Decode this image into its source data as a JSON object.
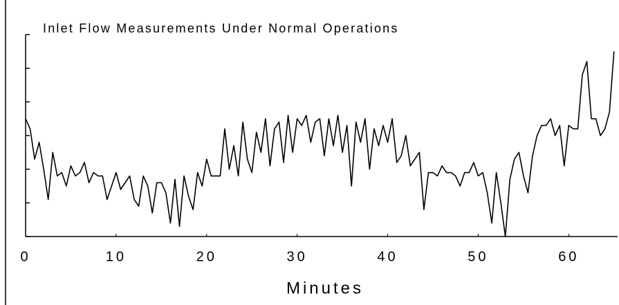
{
  "chart_data": {
    "type": "line",
    "title": "Inlet Flow Measurements Under Normal Operations",
    "xlabel": "Minutes",
    "x": [
      0,
      0.5,
      1,
      1.5,
      2,
      2.5,
      3,
      3.5,
      4,
      4.5,
      5,
      5.5,
      6,
      6.5,
      7,
      7.5,
      8,
      8.5,
      9,
      9.5,
      10,
      10.5,
      11,
      11.5,
      12,
      12.5,
      13,
      13.5,
      14,
      14.5,
      15,
      15.5,
      16,
      16.5,
      17,
      17.5,
      18,
      18.5,
      19,
      19.5,
      20,
      20.5,
      21,
      21.5,
      22,
      22.5,
      23,
      23.5,
      24,
      24.5,
      25,
      25.5,
      26,
      26.5,
      27,
      27.5,
      28,
      28.5,
      29,
      29.5,
      30,
      30.5,
      31,
      31.5,
      32,
      32.5,
      33,
      33.5,
      34,
      34.5,
      35,
      35.5,
      36,
      36.5,
      37,
      37.5,
      38,
      38.5,
      39,
      39.5,
      40,
      40.5,
      41,
      41.5,
      42,
      42.5,
      43,
      43.5,
      44,
      44.5,
      45,
      45.5,
      46,
      46.5,
      47,
      47.5,
      48,
      48.5,
      49,
      49.5,
      50,
      50.5,
      51,
      51.5,
      52,
      52.5,
      53,
      53.5,
      54,
      54.5,
      55,
      55.5,
      56,
      56.5,
      57,
      57.5,
      58,
      58.5,
      59,
      59.5,
      60,
      60.5,
      61,
      61.5,
      62,
      62.5,
      63,
      63.5,
      64,
      64.5,
      65
    ],
    "series": [
      {
        "color": "#000000",
        "values": [
          3.5,
          3.2,
          2.3,
          2.8,
          2.0,
          1.1,
          2.5,
          1.8,
          1.9,
          1.5,
          2.1,
          1.8,
          1.9,
          2.2,
          1.6,
          1.9,
          1.8,
          1.8,
          1.1,
          1.5,
          1.9,
          1.4,
          1.6,
          1.8,
          1.1,
          0.9,
          1.8,
          1.5,
          0.7,
          1.6,
          1.6,
          1.3,
          0.4,
          1.7,
          0.3,
          1.8,
          1.2,
          0.8,
          1.9,
          1.5,
          2.3,
          1.8,
          1.8,
          1.8,
          3.2,
          2.0,
          2.7,
          1.8,
          3.4,
          2.3,
          1.9,
          3.1,
          2.5,
          3.5,
          2.1,
          3.2,
          3.4,
          2.2,
          3.6,
          2.5,
          3.5,
          3.3,
          3.6,
          2.8,
          3.4,
          3.5,
          2.4,
          3.5,
          2.7,
          3.6,
          2.5,
          3.3,
          1.5,
          3.4,
          2.8,
          3.5,
          2.0,
          3.2,
          2.7,
          3.3,
          2.8,
          3.5,
          2.2,
          2.4,
          3.0,
          2.1,
          2.3,
          2.5,
          0.8,
          1.9,
          1.9,
          1.8,
          2.1,
          1.9,
          1.9,
          1.8,
          1.5,
          1.9,
          1.9,
          2.2,
          1.8,
          1.9,
          1.3,
          0.4,
          1.9,
          1.0,
          0.0,
          1.7,
          2.3,
          2.5,
          1.8,
          1.3,
          2.4,
          3.0,
          3.3,
          3.3,
          3.5,
          3.0,
          3.3,
          2.1,
          3.3,
          3.2,
          3.2,
          4.8,
          5.2,
          3.5,
          3.5,
          3.0,
          3.2,
          3.7,
          5.5
        ]
      }
    ],
    "xlim": [
      0,
      65.4
    ],
    "xticks": [
      0,
      10,
      20,
      30,
      40,
      50,
      60
    ],
    "ylim": [
      0,
      6
    ],
    "yticks": [
      0,
      1,
      2,
      3,
      4,
      5,
      6
    ],
    "grid": false
  }
}
